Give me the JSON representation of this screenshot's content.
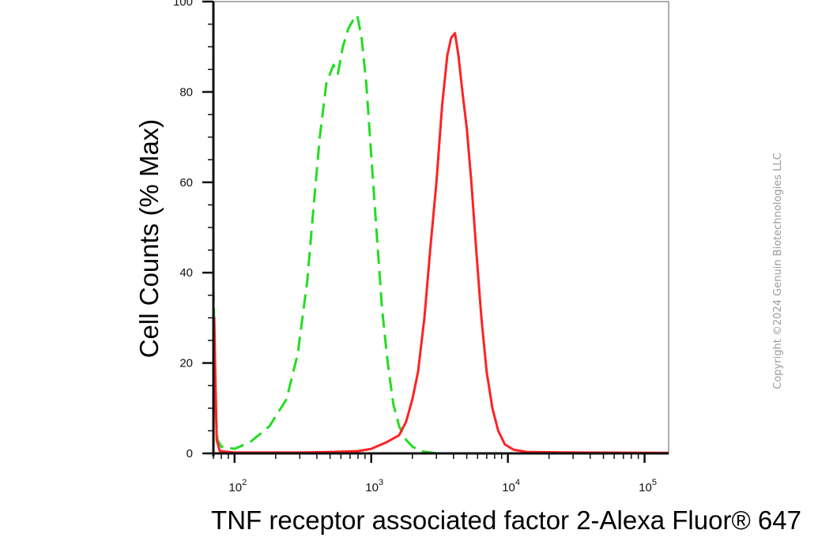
{
  "chart_data": {
    "type": "line",
    "title": "",
    "xlabel": "TNF receptor associated factor 2-Alexa Fluor® 647",
    "ylabel": "Cell Counts (% Max)",
    "xscale": "log",
    "xlim": [
      70,
      150000
    ],
    "ylim": [
      0,
      100
    ],
    "grid": false,
    "y_ticks": [
      {
        "value": 0,
        "label": "0"
      },
      {
        "value": 20,
        "label": "20"
      },
      {
        "value": 40,
        "label": "40"
      },
      {
        "value": 60,
        "label": "60"
      },
      {
        "value": 80,
        "label": "80"
      },
      {
        "value": 100,
        "label": "100"
      }
    ],
    "x_ticks": [
      {
        "value": 100,
        "base": "10",
        "exp": "2"
      },
      {
        "value": 1000,
        "base": "10",
        "exp": "3"
      },
      {
        "value": 10000,
        "base": "10",
        "exp": "4"
      },
      {
        "value": 100000,
        "base": "10",
        "exp": "5"
      }
    ],
    "series": [
      {
        "style": "dashed",
        "color": "#22dd22",
        "points": [
          [
            70,
            37
          ],
          [
            71,
            28
          ],
          [
            72,
            12
          ],
          [
            75,
            3
          ],
          [
            80,
            1.5
          ],
          [
            100,
            1
          ],
          [
            130,
            2.5
          ],
          [
            180,
            6
          ],
          [
            240,
            12
          ],
          [
            290,
            22
          ],
          [
            340,
            38
          ],
          [
            380,
            55
          ],
          [
            420,
            70
          ],
          [
            470,
            82
          ],
          [
            530,
            86
          ],
          [
            570,
            84
          ],
          [
            620,
            90
          ],
          [
            680,
            94
          ],
          [
            740,
            96
          ],
          [
            790,
            97
          ],
          [
            850,
            92
          ],
          [
            920,
            82
          ],
          [
            1000,
            66
          ],
          [
            1100,
            48
          ],
          [
            1200,
            32
          ],
          [
            1320,
            20
          ],
          [
            1450,
            11
          ],
          [
            1600,
            6
          ],
          [
            1800,
            3
          ],
          [
            2000,
            1.5
          ],
          [
            2300,
            0.5
          ],
          [
            3000,
            0
          ],
          [
            150000,
            0
          ]
        ]
      },
      {
        "style": "solid",
        "color": "#ff2222",
        "points": [
          [
            70,
            0
          ],
          [
            71,
            30
          ],
          [
            72,
            20
          ],
          [
            74,
            3
          ],
          [
            78,
            0.5
          ],
          [
            100,
            0.2
          ],
          [
            300,
            0.2
          ],
          [
            500,
            0.3
          ],
          [
            800,
            0.5
          ],
          [
            1000,
            1
          ],
          [
            1300,
            2.5
          ],
          [
            1600,
            4
          ],
          [
            1800,
            7
          ],
          [
            2000,
            12
          ],
          [
            2200,
            18
          ],
          [
            2450,
            30
          ],
          [
            2700,
            45
          ],
          [
            3000,
            60
          ],
          [
            3300,
            77
          ],
          [
            3600,
            88
          ],
          [
            3850,
            92
          ],
          [
            4100,
            93
          ],
          [
            4350,
            88
          ],
          [
            4650,
            80
          ],
          [
            5000,
            72
          ],
          [
            5400,
            60
          ],
          [
            5900,
            44
          ],
          [
            6400,
            30
          ],
          [
            7000,
            18
          ],
          [
            7700,
            10
          ],
          [
            8500,
            5
          ],
          [
            9500,
            2
          ],
          [
            11000,
            0.8
          ],
          [
            14000,
            0.3
          ],
          [
            30000,
            0.2
          ],
          [
            150000,
            0.1
          ]
        ]
      }
    ]
  },
  "watermark": "Copyright ©2024 Genuin Biotechnologies LLC",
  "colors": {
    "frame": "#7a7a7a",
    "green_series": "#22dd22",
    "red_series": "#ff2222"
  }
}
